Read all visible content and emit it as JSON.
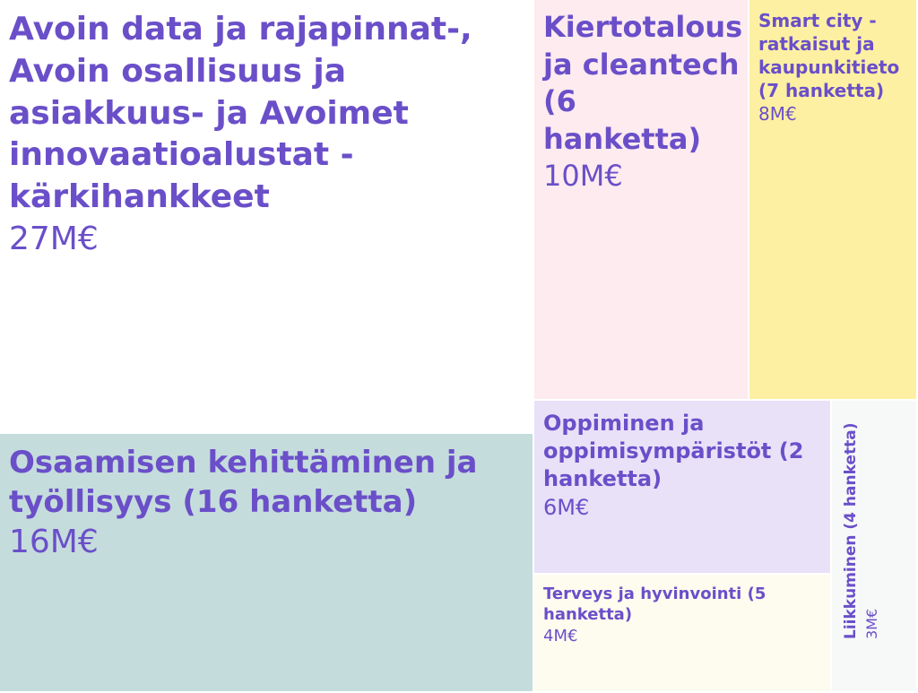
{
  "chart_data": {
    "type": "treemap",
    "items": [
      {
        "label": "Avoin data ja rajapinnat-, Avoin osallisuus ja asiakkuus- ja Avoimet innovaatioalustat -kärkihankkeet",
        "value_label": "27M€",
        "value": 27,
        "color": "#ffffff"
      },
      {
        "label": "Osaamisen kehittäminen ja työllisyys (16 hanketta)",
        "value_label": "16M€",
        "value": 16,
        "color": "#c5dcdc"
      },
      {
        "label": "Kiertotalous ja cleantech (6 hanketta)",
        "value_label": "10M€",
        "value": 10,
        "color": "#fdebef"
      },
      {
        "label": "Smart city -ratkaisut ja kaupunkitieto (7 hanketta)",
        "value_label": "8M€",
        "value": 8,
        "color": "#fdf0a2"
      },
      {
        "label": "Oppiminen ja oppimisympäristöt (2 hanketta)",
        "value_label": "6M€",
        "value": 6,
        "color": "#e8e1f8"
      },
      {
        "label": "Terveys ja hyvinvointi (5 hanketta)",
        "value_label": "4M€",
        "value": 4,
        "color": "#fefcee"
      },
      {
        "label": "Liikkuminen (4 hanketta)",
        "value_label": "3M€",
        "value": 3,
        "color": "#f7f8f8"
      }
    ]
  }
}
